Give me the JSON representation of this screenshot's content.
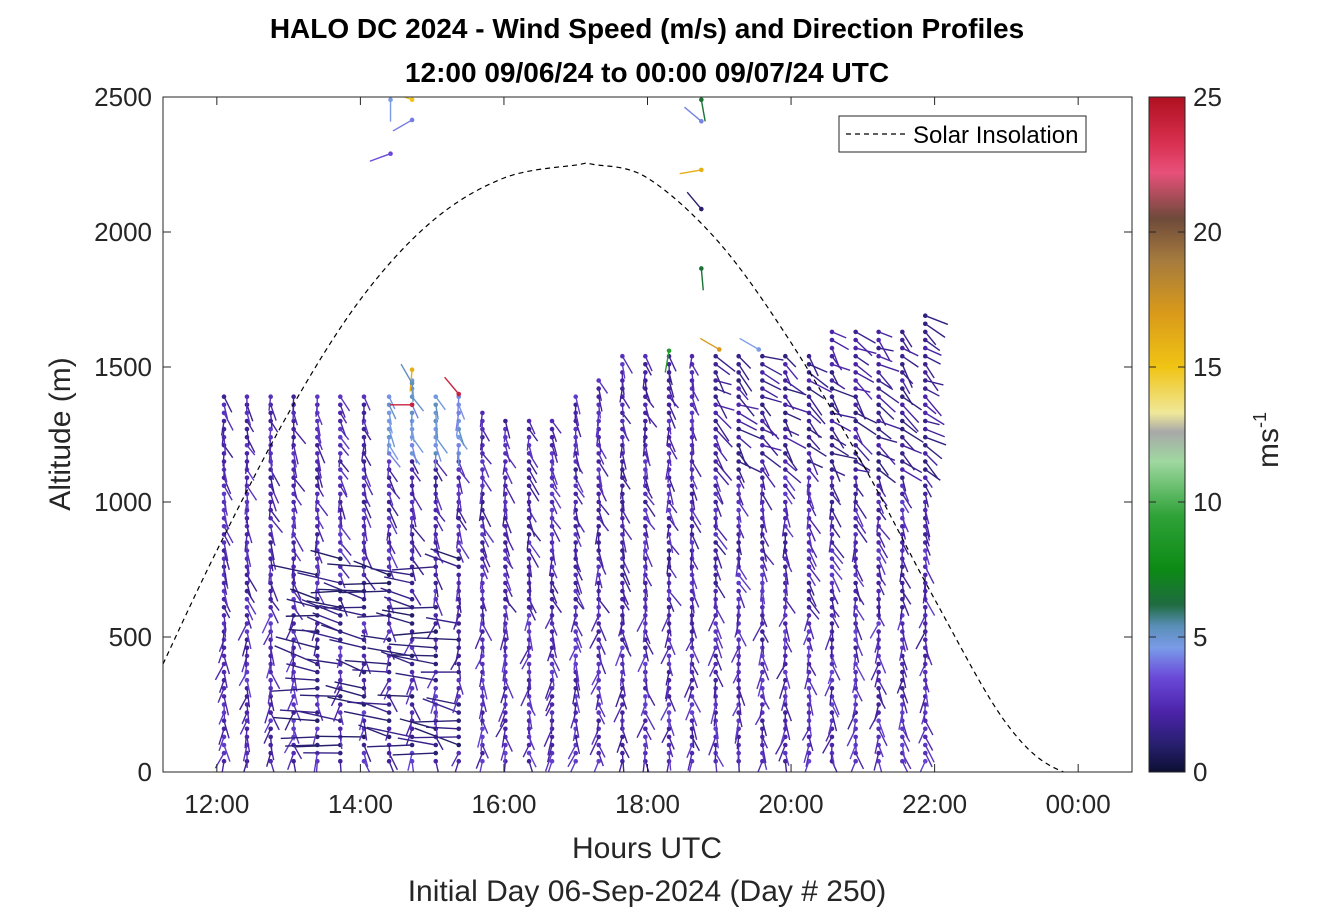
{
  "title": {
    "line1": "HALO DC 2024 - Wind Speed (m/s) and Direction Profiles",
    "line2": "12:00 09/06/24 to 00:00 09/07/24  UTC"
  },
  "xaxis": {
    "label": "Hours UTC",
    "sublabel": "Initial Day 06-Sep-2024 (Day # 250)",
    "range_hours": [
      11.25,
      24.75
    ],
    "ticks": [
      {
        "value": 12,
        "label": "12:00"
      },
      {
        "value": 14,
        "label": "14:00"
      },
      {
        "value": 16,
        "label": "16:00"
      },
      {
        "value": 18,
        "label": "18:00"
      },
      {
        "value": 20,
        "label": "20:00"
      },
      {
        "value": 22,
        "label": "22:00"
      },
      {
        "value": 24,
        "label": "00:00"
      }
    ]
  },
  "yaxis": {
    "label": "Altitude (m)",
    "range": [
      0,
      2500
    ],
    "ticks": [
      {
        "value": 0,
        "label": "0"
      },
      {
        "value": 500,
        "label": "500"
      },
      {
        "value": 1000,
        "label": "1000"
      },
      {
        "value": 1500,
        "label": "1500"
      },
      {
        "value": 2000,
        "label": "2000"
      },
      {
        "value": 2500,
        "label": "2500"
      }
    ]
  },
  "legend": {
    "label": "Solar Insolation",
    "location": "top-right",
    "line_style": "dashed",
    "line_color": "#000000"
  },
  "colorbar": {
    "label": "ms",
    "label_exponent": "-1",
    "range": [
      0,
      25
    ],
    "ticks": [
      {
        "value": 0,
        "label": "0"
      },
      {
        "value": 5,
        "label": "5"
      },
      {
        "value": 10,
        "label": "10"
      },
      {
        "value": 15,
        "label": "15"
      },
      {
        "value": 20,
        "label": "20"
      },
      {
        "value": 25,
        "label": "25"
      }
    ],
    "colormap_stops": [
      {
        "v": 0,
        "color": "#0d0f33"
      },
      {
        "v": 1,
        "color": "#271f6e"
      },
      {
        "v": 2.2,
        "color": "#4b23a8"
      },
      {
        "v": 3.5,
        "color": "#6a49d9"
      },
      {
        "v": 4.6,
        "color": "#7a9be8"
      },
      {
        "v": 5.4,
        "color": "#5a8fb8"
      },
      {
        "v": 6.2,
        "color": "#1f6b40"
      },
      {
        "v": 7.5,
        "color": "#0c8a15"
      },
      {
        "v": 9.5,
        "color": "#2fa238"
      },
      {
        "v": 11.5,
        "color": "#9fd8a0"
      },
      {
        "v": 12.6,
        "color": "#a8a8a8"
      },
      {
        "v": 13.3,
        "color": "#f0e89a"
      },
      {
        "v": 15,
        "color": "#f0c414"
      },
      {
        "v": 17,
        "color": "#d99a1a"
      },
      {
        "v": 19,
        "color": "#a47a3e"
      },
      {
        "v": 20.5,
        "color": "#6e4a3a"
      },
      {
        "v": 22.2,
        "color": "#e8507a"
      },
      {
        "v": 23.3,
        "color": "#d83050"
      },
      {
        "v": 25,
        "color": "#b01020"
      }
    ]
  },
  "chart_data": {
    "type": "wind_barb_profile",
    "solar_insolation_curve": {
      "x_hours": [
        11.25,
        12,
        13,
        14,
        15,
        16,
        17,
        17.25,
        18,
        19,
        20,
        21,
        22,
        23,
        23.8,
        24.75
      ],
      "y_altitude_m": [
        400,
        820,
        1330,
        1750,
        2040,
        2200,
        2248,
        2250,
        2200,
        1960,
        1590,
        1140,
        640,
        180,
        0,
        0
      ]
    },
    "profiles": {
      "hours": [
        12.1,
        12.42,
        12.75,
        13.07,
        13.4,
        13.72,
        14.05,
        14.4,
        14.72,
        15.05,
        15.37,
        15.7,
        16.02,
        16.35,
        16.67,
        17.0,
        17.32,
        17.65,
        17.97,
        18.3,
        18.62,
        18.95,
        19.27,
        19.6,
        19.92,
        20.25,
        20.57,
        20.9,
        21.22,
        21.55,
        21.87
      ],
      "top_altitude_m": [
        1410,
        1410,
        1410,
        1400,
        1400,
        1400,
        1400,
        1400,
        1470,
        1400,
        1400,
        1330,
        1320,
        1320,
        1320,
        1400,
        1470,
        1550,
        1560,
        1560,
        1560,
        1560,
        1560,
        1560,
        1560,
        1560,
        1630,
        1650,
        1640,
        1640,
        1700
      ],
      "bottom_altitude_m": 40,
      "gate_spacing_m": 30,
      "typical_speed_ms": 2.5,
      "low_level_jet": {
        "hours": [
          13.2,
          15.6
        ],
        "altitude_m": [
          50,
          800
        ],
        "direction": "westerly",
        "speed_ms": 0.8
      }
    },
    "isolated_upper_barbs": [
      {
        "hour": 14.42,
        "alt": 2490,
        "speed": 4.6,
        "dir_deg": 180
      },
      {
        "hour": 14.72,
        "alt": 2490,
        "speed": 15,
        "dir_deg": 290
      },
      {
        "hour": 14.72,
        "alt": 2415,
        "speed": 4.2,
        "dir_deg": 240
      },
      {
        "hour": 14.42,
        "alt": 2290,
        "speed": 3.5,
        "dir_deg": 250
      },
      {
        "hour": 18.75,
        "alt": 2490,
        "speed": 6.5,
        "dir_deg": 170
      },
      {
        "hour": 18.75,
        "alt": 2410,
        "speed": 4.3,
        "dir_deg": 310
      },
      {
        "hour": 18.75,
        "alt": 2230,
        "speed": 16,
        "dir_deg": 260
      },
      {
        "hour": 18.75,
        "alt": 2085,
        "speed": 1,
        "dir_deg": 320
      },
      {
        "hour": 18.75,
        "alt": 1865,
        "speed": 6.5,
        "dir_deg": 175
      },
      {
        "hour": 14.72,
        "alt": 1490,
        "speed": 16,
        "dir_deg": 185
      },
      {
        "hour": 14.72,
        "alt": 1440,
        "speed": 5.3,
        "dir_deg": 330
      },
      {
        "hour": 14.72,
        "alt": 1360,
        "speed": 24,
        "dir_deg": 270
      },
      {
        "hour": 15.37,
        "alt": 1400,
        "speed": 24,
        "dir_deg": 320
      },
      {
        "hour": 18.3,
        "alt": 1560,
        "speed": 9,
        "dir_deg": 190
      },
      {
        "hour": 19.0,
        "alt": 1565,
        "speed": 17,
        "dir_deg": 300
      },
      {
        "hour": 19.55,
        "alt": 1565,
        "speed": 4.6,
        "dir_deg": 300
      }
    ]
  }
}
